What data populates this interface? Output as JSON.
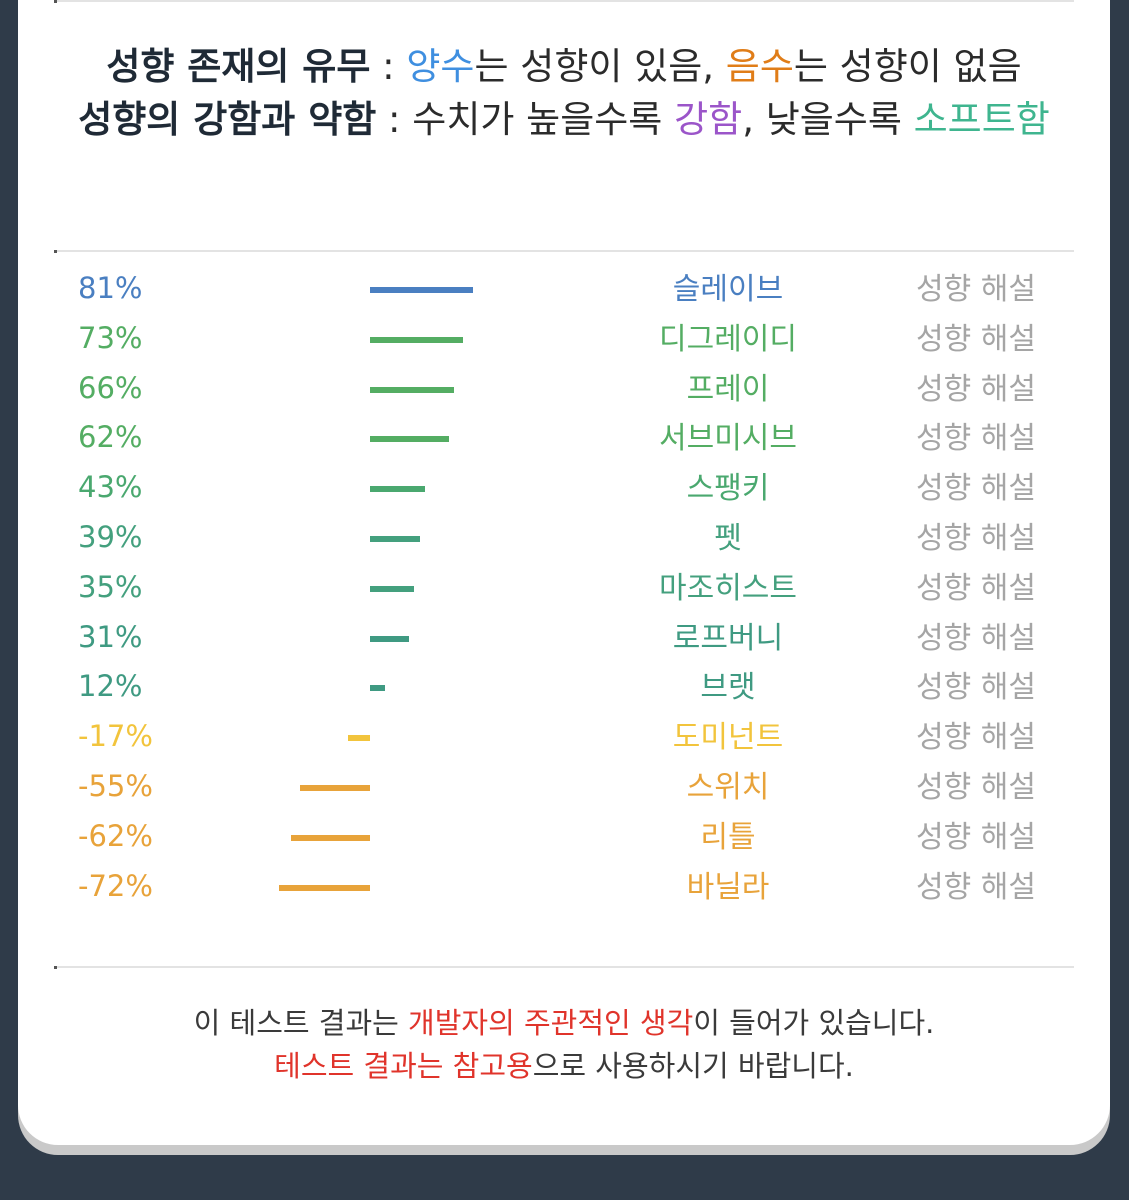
{
  "legend": {
    "line1": {
      "label": "성향 존재의 유무",
      "sep": " : ",
      "positive": "양수",
      "text1": "는 성향이 있음, ",
      "negative": "음수",
      "text2": "는 성향이 없음"
    },
    "line2": {
      "label": "성향의 강함과 약함",
      "sep": " : ",
      "text1": "수치가 높을수록 ",
      "strong": "강함",
      "text2": ", 낮을수록 ",
      "soft": "소프트함"
    }
  },
  "results": [
    {
      "percent": "81%",
      "value": 81,
      "name": "슬레이브",
      "link": "성향 해설",
      "color": "#4a7fc1"
    },
    {
      "percent": "73%",
      "value": 73,
      "name": "디그레이디",
      "link": "성향 해설",
      "color": "#54ad63"
    },
    {
      "percent": "66%",
      "value": 66,
      "name": "프레이",
      "link": "성향 해설",
      "color": "#54ad63"
    },
    {
      "percent": "62%",
      "value": 62,
      "name": "서브미시브",
      "link": "성향 해설",
      "color": "#54ad63"
    },
    {
      "percent": "43%",
      "value": 43,
      "name": "스팽키",
      "link": "성향 해설",
      "color": "#4aa86f"
    },
    {
      "percent": "39%",
      "value": 39,
      "name": "펫",
      "link": "성향 해설",
      "color": "#44a07e"
    },
    {
      "percent": "35%",
      "value": 35,
      "name": "마조히스트",
      "link": "성향 해설",
      "color": "#44a07e"
    },
    {
      "percent": "31%",
      "value": 31,
      "name": "로프버니",
      "link": "성향 해설",
      "color": "#3f9a82"
    },
    {
      "percent": "12%",
      "value": 12,
      "name": "브랫",
      "link": "성향 해설",
      "color": "#3f9a82"
    },
    {
      "percent": "-17%",
      "value": -17,
      "name": "도미넌트",
      "link": "성향 해설",
      "color": "#f2c43c"
    },
    {
      "percent": "-55%",
      "value": -55,
      "name": "스위치",
      "link": "성향 해설",
      "color": "#e8a33a"
    },
    {
      "percent": "-62%",
      "value": -62,
      "name": "리틀",
      "link": "성향 해설",
      "color": "#e8a33a"
    },
    {
      "percent": "-72%",
      "value": -72,
      "name": "바닐라",
      "link": "성향 해설",
      "color": "#e8a33a"
    }
  ],
  "footer": {
    "line1_pre": "이 테스트 결과는 ",
    "line1_highlight": "개발자의 주관적인 생각",
    "line1_post": "이 들어가 있습니다.",
    "line2_highlight": "테스트 결과는 참고용",
    "line2_post": "으로 사용하시기 바랍니다."
  }
}
